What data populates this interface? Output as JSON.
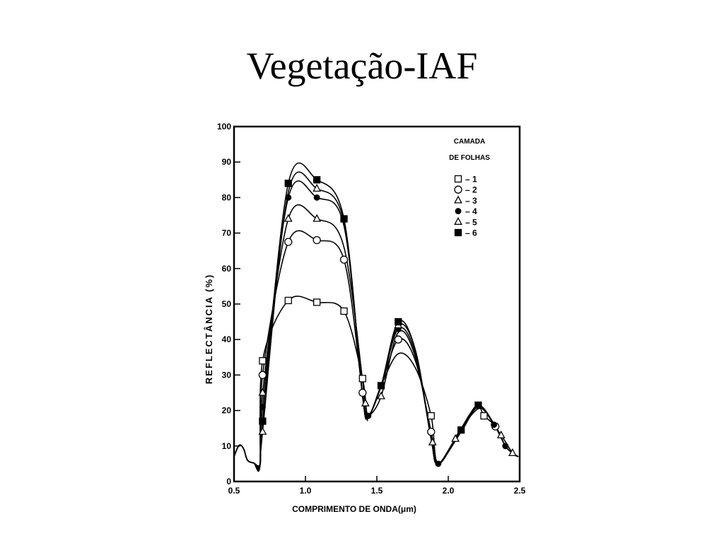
{
  "slide": {
    "title": "Vegetação-IAF"
  },
  "chart_data": {
    "type": "line",
    "title": "",
    "xlabel": "COMPRIMENTO DE ONDA(μm)",
    "ylabel": "REFLECTÂNCIA (%)",
    "xlim": [
      0.5,
      2.5
    ],
    "ylim": [
      0,
      100
    ],
    "x_ticks": [
      "0.5",
      "1.0",
      "1.5",
      "2.0",
      "2.5"
    ],
    "y_ticks": [
      "0",
      "10",
      "20",
      "30",
      "40",
      "50",
      "60",
      "70",
      "80",
      "90",
      "100"
    ],
    "grid": false,
    "legend": {
      "position": "top-right",
      "title_lines": [
        "CAMADA",
        "DE FOLHAS"
      ],
      "entries": [
        {
          "label": "– 1",
          "marker": "square-open"
        },
        {
          "label": "– 2",
          "marker": "circle-open"
        },
        {
          "label": "– 3",
          "marker": "triangle-open"
        },
        {
          "label": "– 4",
          "marker": "circle-filled"
        },
        {
          "label": "– 5",
          "marker": "triangle-open"
        },
        {
          "label": "– 6",
          "marker": "square-filled"
        }
      ]
    },
    "series": [
      {
        "name": "1",
        "marker": "square-open",
        "x": [
          0.5,
          0.7,
          0.88,
          1.08,
          1.27,
          1.4,
          1.44,
          1.53,
          1.65,
          1.77,
          1.88,
          1.93,
          2.09,
          2.21,
          2.25,
          2.33,
          2.4,
          2.45,
          2.49
        ],
        "y": [
          10,
          34,
          51,
          50.5,
          48,
          29,
          18.5,
          27,
          36,
          32,
          18.5,
          5,
          15,
          20.5,
          18.5,
          15.5,
          10,
          8,
          7
        ],
        "markers": [
          [
            0.7,
            34
          ],
          [
            0.88,
            51
          ],
          [
            1.08,
            50.5
          ],
          [
            1.27,
            48
          ],
          [
            1.4,
            29
          ],
          [
            1.88,
            18.5
          ],
          [
            2.25,
            18.5
          ]
        ]
      },
      {
        "name": "2",
        "marker": "circle-open",
        "x": [
          0.5,
          0.7,
          0.88,
          1.08,
          1.27,
          1.4,
          1.44,
          1.53,
          1.65,
          1.77,
          1.88,
          1.93,
          2.09,
          2.21,
          2.33,
          2.4,
          2.45,
          2.49
        ],
        "y": [
          10,
          30,
          67.5,
          68,
          62.5,
          25,
          18.5,
          27,
          40,
          34,
          14,
          5,
          15,
          21,
          15.5,
          10,
          8,
          7
        ],
        "markers": [
          [
            0.7,
            30
          ],
          [
            0.88,
            67.5
          ],
          [
            1.08,
            68
          ],
          [
            1.27,
            62.5
          ],
          [
            1.4,
            25
          ],
          [
            1.65,
            40
          ],
          [
            1.88,
            14
          ],
          [
            2.33,
            15.5
          ]
        ]
      },
      {
        "name": "3",
        "marker": "triangle-open",
        "x": [
          0.5,
          0.7,
          0.88,
          1.08,
          1.27,
          1.42,
          1.44,
          1.53,
          1.65,
          1.77,
          1.89,
          1.93,
          2.05,
          2.21,
          2.37,
          2.45,
          2.49
        ],
        "y": [
          10,
          25,
          74,
          74,
          66,
          22,
          18.5,
          24,
          42,
          35,
          11,
          5,
          12,
          21,
          13,
          8,
          7
        ],
        "markers": [
          [
            0.7,
            25
          ],
          [
            0.88,
            74
          ],
          [
            1.08,
            74
          ],
          [
            1.42,
            22
          ],
          [
            1.53,
            24
          ],
          [
            1.89,
            11
          ],
          [
            2.05,
            12
          ],
          [
            2.37,
            13
          ]
        ]
      },
      {
        "name": "4",
        "marker": "circle-filled",
        "x": [
          0.5,
          0.7,
          0.88,
          1.08,
          1.27,
          1.4,
          1.44,
          1.53,
          1.65,
          1.77,
          1.88,
          1.93,
          2.09,
          2.21,
          2.32,
          2.4,
          2.45,
          2.49
        ],
        "y": [
          10,
          21,
          80,
          80,
          72,
          24,
          18.5,
          27,
          43,
          36,
          12,
          5,
          14,
          21,
          16,
          10,
          8,
          7
        ],
        "markers": [
          [
            0.7,
            21
          ],
          [
            0.88,
            80
          ],
          [
            1.08,
            80
          ],
          [
            1.44,
            18.5
          ],
          [
            1.65,
            43
          ],
          [
            1.93,
            5
          ],
          [
            2.32,
            16
          ],
          [
            2.4,
            10
          ]
        ]
      },
      {
        "name": "5",
        "marker": "triangle-open",
        "x": [
          0.5,
          0.7,
          0.88,
          1.08,
          1.27,
          1.4,
          1.44,
          1.53,
          1.65,
          1.77,
          1.88,
          1.93,
          2.09,
          2.21,
          2.33,
          2.4,
          2.45,
          2.49
        ],
        "y": [
          10,
          14,
          81.5,
          82.5,
          73,
          24,
          18.5,
          27,
          44,
          37,
          12,
          5,
          14,
          21,
          15.5,
          10,
          8,
          7
        ],
        "markers": [
          [
            0.7,
            14
          ],
          [
            1.08,
            82.5
          ],
          [
            1.65,
            44
          ],
          [
            2.45,
            8
          ]
        ]
      },
      {
        "name": "6",
        "marker": "square-filled",
        "x": [
          0.5,
          0.7,
          0.88,
          1.08,
          1.27,
          1.4,
          1.44,
          1.53,
          1.65,
          1.77,
          1.88,
          1.93,
          2.09,
          2.21,
          2.33,
          2.4,
          2.45,
          2.49
        ],
        "y": [
          10,
          17,
          84,
          85,
          74,
          24,
          18.5,
          27,
          45,
          37,
          12,
          5,
          14.5,
          21.5,
          15.5,
          10,
          8,
          7
        ],
        "markers": [
          [
            0.7,
            17
          ],
          [
            0.88,
            84
          ],
          [
            1.08,
            85
          ],
          [
            1.27,
            74
          ],
          [
            1.53,
            27
          ],
          [
            1.65,
            45
          ],
          [
            2.09,
            14.5
          ],
          [
            2.21,
            21.5
          ]
        ]
      }
    ]
  }
}
